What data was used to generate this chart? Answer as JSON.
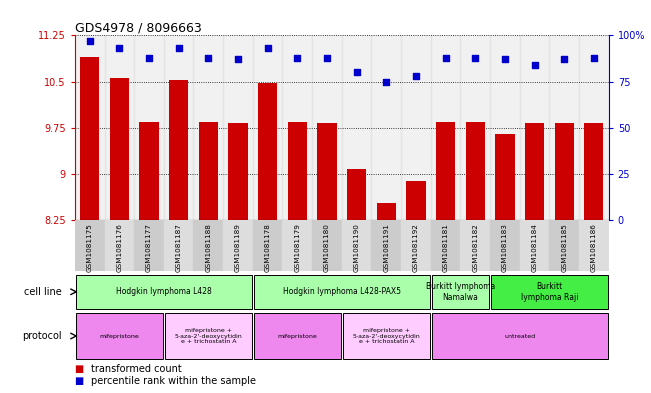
{
  "title": "GDS4978 / 8096663",
  "samples": [
    "GSM1081175",
    "GSM1081176",
    "GSM1081177",
    "GSM1081187",
    "GSM1081188",
    "GSM1081189",
    "GSM1081178",
    "GSM1081179",
    "GSM1081180",
    "GSM1081190",
    "GSM1081191",
    "GSM1081192",
    "GSM1081181",
    "GSM1081182",
    "GSM1081183",
    "GSM1081184",
    "GSM1081185",
    "GSM1081186"
  ],
  "bar_values": [
    10.9,
    10.55,
    9.85,
    10.52,
    9.85,
    9.82,
    10.47,
    9.85,
    9.82,
    9.08,
    8.52,
    8.88,
    9.85,
    9.85,
    9.65,
    9.82,
    9.82,
    9.82
  ],
  "dot_values": [
    97,
    93,
    88,
    93,
    88,
    87,
    93,
    88,
    88,
    80,
    75,
    78,
    88,
    88,
    87,
    84,
    87,
    88
  ],
  "ylim_left": [
    8.25,
    11.25
  ],
  "ylim_right": [
    0,
    100
  ],
  "yticks_left": [
    8.25,
    9.0,
    9.75,
    10.5,
    11.25
  ],
  "ytick_labels_left": [
    "8.25",
    "9",
    "9.75",
    "10.5",
    "11.25"
  ],
  "yticks_right": [
    0,
    25,
    50,
    75,
    100
  ],
  "ytick_labels_right": [
    "0",
    "25",
    "50",
    "75",
    "100%"
  ],
  "bar_color": "#cc0000",
  "dot_color": "#0000cc",
  "background_color": "#ffffff",
  "cell_line_groups": [
    {
      "label": "Hodgkin lymphoma L428",
      "start": 0,
      "end": 6,
      "color": "#aaffaa"
    },
    {
      "label": "Hodgkin lymphoma L428-PAX5",
      "start": 6,
      "end": 12,
      "color": "#aaffaa"
    },
    {
      "label": "Burkitt lymphoma\nNamalwa",
      "start": 12,
      "end": 14,
      "color": "#aaffaa"
    },
    {
      "label": "Burkitt\nlymphoma Raji",
      "start": 14,
      "end": 18,
      "color": "#44ee44"
    }
  ],
  "protocol_groups": [
    {
      "label": "mifepristone",
      "start": 0,
      "end": 3,
      "color": "#ee88ee"
    },
    {
      "label": "mifepristone +\n5-aza-2'-deoxycytidin\ne + trichostatin A",
      "start": 3,
      "end": 6,
      "color": "#ffccff"
    },
    {
      "label": "mifepristone",
      "start": 6,
      "end": 9,
      "color": "#ee88ee"
    },
    {
      "label": "mifepristone +\n5-aza-2'-deoxycytidin\ne + trichostatin A",
      "start": 9,
      "end": 12,
      "color": "#ffccff"
    },
    {
      "label": "untreated",
      "start": 12,
      "end": 18,
      "color": "#ee88ee"
    }
  ],
  "legend_bar_label": "transformed count",
  "legend_dot_label": "percentile rank within the sample",
  "cell_line_label": "cell line",
  "protocol_label": "protocol",
  "xtick_bg_color": "#cccccc"
}
